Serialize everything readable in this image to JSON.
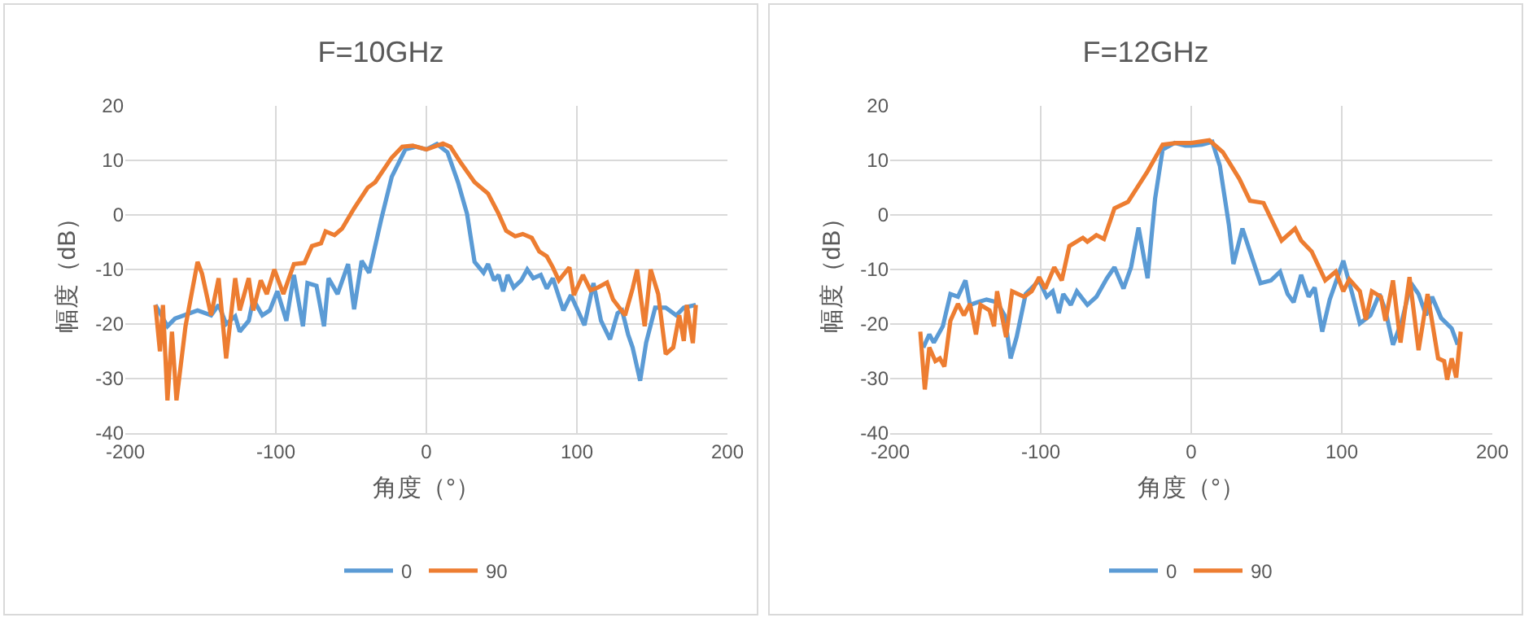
{
  "chart_data": [
    {
      "type": "line",
      "title": "F=10GHz",
      "xlabel": "角度（°）",
      "ylabel": "幅度（dB）",
      "xlim": [
        -200,
        200
      ],
      "xticks": [
        -200,
        -100,
        0,
        100,
        200
      ],
      "ylim": [
        -40,
        20
      ],
      "yticks": [
        -40,
        -30,
        -20,
        -10,
        0,
        10,
        20
      ],
      "grid": true,
      "legend": "bottom",
      "series": [
        {
          "name": "0",
          "color": "#5b9bd5",
          "x": [
            -180,
            -172,
            -167,
            -152,
            -143,
            -138,
            -133,
            -127,
            -124,
            -118,
            -115,
            -109,
            -104,
            -99,
            -93,
            -88,
            -82,
            -79,
            -73,
            -68,
            -65,
            -59,
            -52,
            -48,
            -43,
            -38,
            -30,
            -23,
            -14,
            -7,
            0,
            7,
            14,
            21,
            27,
            32,
            38,
            41,
            45,
            48,
            51,
            54,
            58,
            63,
            67,
            71,
            76,
            80,
            84,
            91,
            96,
            105,
            111,
            116,
            122,
            127,
            130,
            134,
            137,
            142,
            146,
            152,
            159,
            166,
            171,
            179
          ],
          "values": [
            -16.5,
            -20.4,
            -19,
            -17.5,
            -18.4,
            -16.5,
            -20,
            -18.6,
            -21.4,
            -19.4,
            -15.5,
            -18.4,
            -17.5,
            -14,
            -19.4,
            -11,
            -20.4,
            -12.5,
            -13,
            -20.4,
            -11.6,
            -14.5,
            -9,
            -17.3,
            -8.4,
            -10.6,
            -0.8,
            7,
            12,
            12.5,
            12,
            13,
            11.5,
            6,
            0.2,
            -8.6,
            -10.6,
            -9,
            -12,
            -11,
            -14,
            -11,
            -13.3,
            -12,
            -10,
            -11.6,
            -11,
            -13.5,
            -11.6,
            -17.5,
            -14.7,
            -20.2,
            -12.5,
            -19.4,
            -22.8,
            -18,
            -17.5,
            -21.9,
            -24.3,
            -30.4,
            -23.4,
            -17,
            -17,
            -18.4,
            -17,
            -16.5
          ]
        },
        {
          "name": "90",
          "color": "#ed7d31",
          "x": [
            -180,
            -177,
            -175,
            -172,
            -169,
            -166,
            -160,
            -152,
            -149,
            -143,
            -138,
            -133,
            -127,
            -124,
            -118,
            -115,
            -110,
            -106,
            -101,
            -95,
            -88,
            -81,
            -76,
            -70,
            -67,
            -61,
            -56,
            -48,
            -39,
            -34,
            -23,
            -16,
            -9,
            0,
            11,
            16,
            23,
            32,
            41,
            48,
            53,
            59,
            64,
            70,
            75,
            80,
            84,
            88,
            95,
            98,
            104,
            109,
            114,
            120,
            124,
            132,
            137,
            140,
            145,
            149,
            154,
            159,
            164,
            168,
            171,
            173,
            177,
            179
          ],
          "values": [
            -16.5,
            -25,
            -16.5,
            -34,
            -21.4,
            -34,
            -20.4,
            -8.6,
            -10.8,
            -18.4,
            -11.6,
            -26.3,
            -11.6,
            -17.5,
            -11.6,
            -17.5,
            -12,
            -14.5,
            -10,
            -14.5,
            -9,
            -8.8,
            -5.7,
            -5.2,
            -3,
            -3.7,
            -2.5,
            1.2,
            5,
            6,
            10.5,
            12.5,
            12.7,
            12,
            13.1,
            12.5,
            9.5,
            6,
            3.9,
            0.2,
            -2.9,
            -3.9,
            -3.5,
            -4.2,
            -6.7,
            -7.6,
            -9.6,
            -12,
            -9.6,
            -14.7,
            -11,
            -13.8,
            -13.3,
            -12.4,
            -15.5,
            -18.4,
            -13.5,
            -10,
            -20.4,
            -10,
            -14.5,
            -25.5,
            -24.3,
            -18.4,
            -23.1,
            -16.5,
            -23.5,
            -16.5
          ]
        }
      ]
    },
    {
      "type": "line",
      "title": "F=12GHz",
      "xlabel": "角度（°）",
      "ylabel": "幅度（dB）",
      "xlim": [
        -200,
        200
      ],
      "xticks": [
        -200,
        -100,
        0,
        100,
        200
      ],
      "ylim": [
        -40,
        20
      ],
      "yticks": [
        -40,
        -30,
        -20,
        -10,
        0,
        10,
        20
      ],
      "grid": true,
      "legend": "bottom",
      "series": [
        {
          "name": "0",
          "color": "#5b9bd5",
          "x": [
            -178,
            -174,
            -171,
            -165,
            -160,
            -155,
            -150,
            -147,
            -142,
            -136,
            -129,
            -124,
            -120,
            -116,
            -110,
            -101,
            -96,
            -92,
            -88,
            -85,
            -80,
            -76,
            -69,
            -63,
            -56,
            -51,
            -45,
            -40,
            -35,
            -29,
            -24,
            -19,
            -11,
            -4,
            0,
            7,
            14,
            19,
            25,
            28,
            34,
            39,
            46,
            53,
            59,
            64,
            68,
            73,
            78,
            82,
            87,
            92,
            101,
            107,
            112,
            119,
            125,
            129,
            134,
            140,
            146,
            151,
            156,
            160,
            166,
            173,
            177
          ],
          "values": [
            -24.3,
            -21.9,
            -23.4,
            -20.4,
            -14.5,
            -15,
            -12,
            -16.5,
            -16,
            -15.5,
            -16,
            -18.4,
            -26.3,
            -22.4,
            -14.5,
            -12,
            -15,
            -14,
            -18,
            -14.5,
            -16.5,
            -14,
            -16.5,
            -15,
            -11.6,
            -9.6,
            -13.5,
            -9.6,
            -2.3,
            -11.6,
            3,
            12,
            13.2,
            12.7,
            12.7,
            12.9,
            13.4,
            9,
            -1.8,
            -9,
            -2.5,
            -6.7,
            -12.5,
            -12,
            -10.4,
            -14.5,
            -16,
            -11,
            -15,
            -13.3,
            -21.4,
            -15.5,
            -8.4,
            -14.5,
            -19.9,
            -18.4,
            -14.5,
            -17.5,
            -23.8,
            -19.4,
            -12.5,
            -14.5,
            -18.4,
            -15,
            -18.9,
            -20.8,
            -23.8
          ]
        },
        {
          "name": "90",
          "color": "#ed7d31",
          "x": [
            -180,
            -177,
            -174,
            -170,
            -167,
            -164,
            -160,
            -155,
            -151,
            -147,
            -143,
            -140,
            -134,
            -131,
            -129,
            -123,
            -119,
            -111,
            -106,
            -101,
            -97,
            -91,
            -86,
            -81,
            -72,
            -69,
            -63,
            -58,
            -51,
            -42,
            -29,
            -19,
            -10,
            0,
            12,
            21,
            32,
            39,
            48,
            60,
            69,
            73,
            80,
            89,
            96,
            101,
            105,
            112,
            116,
            120,
            126,
            129,
            134,
            139,
            145,
            151,
            157,
            164,
            168,
            170,
            173,
            176,
            179
          ],
          "values": [
            -21.4,
            -32,
            -24.3,
            -26.8,
            -26.3,
            -27.8,
            -19.4,
            -16.3,
            -18.4,
            -16.3,
            -21.9,
            -16.5,
            -17.5,
            -20.4,
            -14,
            -22.4,
            -14,
            -15,
            -14,
            -11.4,
            -13.5,
            -9.6,
            -12,
            -5.7,
            -4.2,
            -4.9,
            -3.7,
            -4.4,
            1.2,
            2.4,
            8,
            12.9,
            13.2,
            13.2,
            13.7,
            11.5,
            6.6,
            2.6,
            2.2,
            -4.7,
            -2.5,
            -4.7,
            -6.7,
            -12,
            -10.4,
            -14,
            -11.8,
            -14,
            -19.2,
            -14,
            -15,
            -19.4,
            -12,
            -23.4,
            -11.4,
            -24.8,
            -14.5,
            -26.3,
            -26.8,
            -30.2,
            -26.3,
            -29.8,
            -21.4
          ]
        }
      ]
    }
  ]
}
